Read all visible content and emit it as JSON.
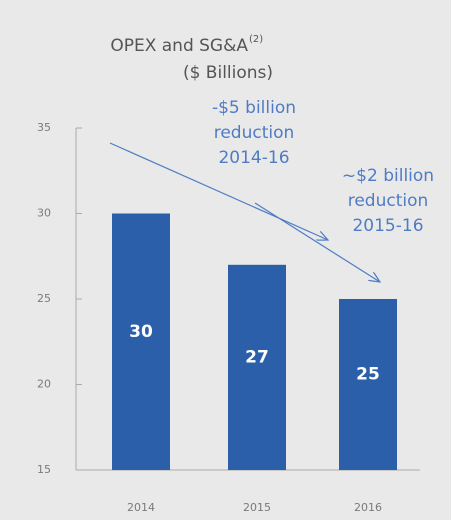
{
  "chart_data": {
    "type": "bar",
    "title": "OPEX and SG&A",
    "title_note": "(2)",
    "subtitle": "($ Billions)",
    "categories": [
      "2014",
      "2015",
      "2016"
    ],
    "values": [
      30,
      27,
      25
    ],
    "color": "#2b5fa9",
    "ylim": [
      15,
      35
    ],
    "yticks": [
      15,
      20,
      25,
      30,
      35
    ],
    "annotations": [
      {
        "lines": [
          "-$5 billion",
          "reduction",
          "2014-16"
        ]
      },
      {
        "lines": [
          "~$2 billion",
          "reduction",
          "2015-16"
        ]
      }
    ]
  }
}
